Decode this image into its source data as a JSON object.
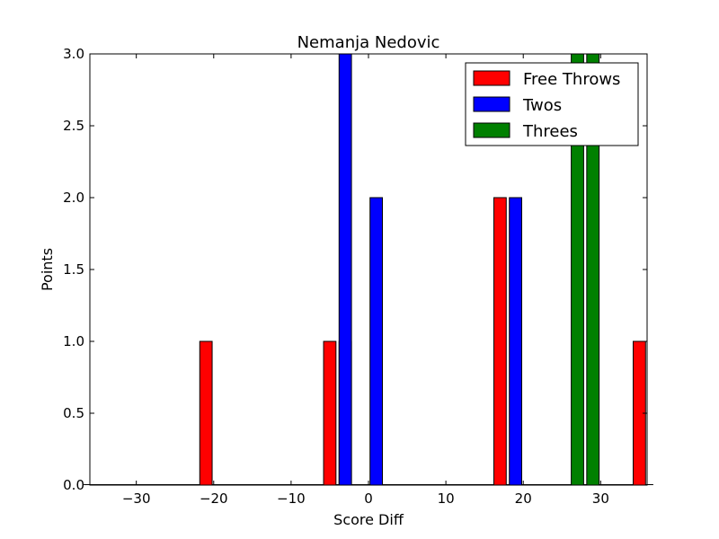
{
  "chart_data": {
    "type": "bar",
    "title": "Nemanja Nedovic",
    "xlabel": "Score Diff",
    "ylabel": "Points",
    "xlim": [
      -36,
      36
    ],
    "ylim": [
      0,
      3.0
    ],
    "xticks": [
      -30,
      -20,
      -10,
      0,
      10,
      20,
      30
    ],
    "xtick_labels": [
      "−30",
      "−20",
      "−10",
      "0",
      "10",
      "20",
      "30"
    ],
    "yticks": [
      0,
      0.5,
      1.0,
      1.5,
      2.0,
      2.5,
      3.0
    ],
    "ytick_labels": [
      "0.0",
      "0.5",
      "1.0",
      "1.5",
      "2.0",
      "2.5",
      "3.0"
    ],
    "bar_width": 1.6,
    "legend_position": "top-right",
    "grid": false,
    "series": [
      {
        "name": "Free Throws",
        "color": "#ff0000",
        "points": [
          {
            "x": -21,
            "y": 1
          },
          {
            "x": -5,
            "y": 1
          },
          {
            "x": -3,
            "y": 1
          },
          {
            "x": 17,
            "y": 2
          },
          {
            "x": 35,
            "y": 1
          }
        ]
      },
      {
        "name": "Twos",
        "color": "#0000ff",
        "points": [
          {
            "x": -3,
            "y": 3
          },
          {
            "x": 1,
            "y": 2
          },
          {
            "x": 19,
            "y": 2
          }
        ]
      },
      {
        "name": "Threes",
        "color": "#008000",
        "points": [
          {
            "x": 27,
            "y": 3
          },
          {
            "x": 29,
            "y": 3
          }
        ]
      }
    ]
  }
}
